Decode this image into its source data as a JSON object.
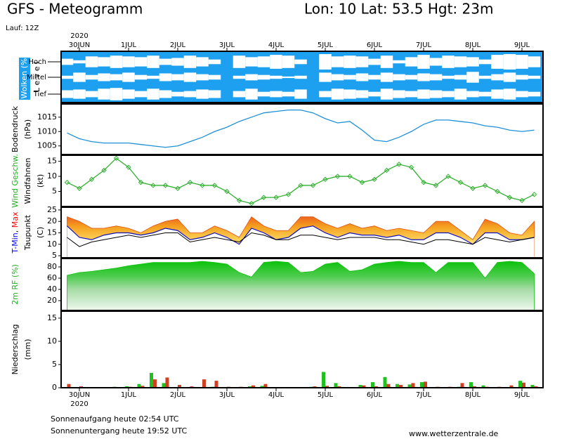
{
  "header": {
    "title": "GFS - Meteogramm",
    "location": "Lon: 10 Lat: 53.5 Hgt: 23m",
    "run": "Lauf: 12Z"
  },
  "footer": {
    "sunrise": "Sonnenaufgang heute 02:54 UTC",
    "sunset": "Sonnenuntergang heute 19:52 UTC",
    "source": "www.wetterzentrale.de"
  },
  "chart_data": [
    {
      "type": "cloud",
      "year": "2020",
      "categories": [
        null,
        "30JUN",
        null,
        null,
        null,
        "1JUL",
        null,
        null,
        null,
        "2JUL",
        null,
        null,
        null,
        "3JUL",
        null,
        null,
        null,
        "4JUL",
        null,
        null,
        null,
        "5JUL",
        null,
        null,
        null,
        "6JUL",
        null,
        null,
        null,
        "7JUL",
        null,
        null,
        null,
        "8JUL",
        null,
        null,
        null,
        "9JUL",
        null
      ],
      "ylabel": [
        [
          {
            "text": "Wolken (%)",
            "color": "#ffffff"
          }
        ],
        [
          {
            "text": "L e v e l"
          }
        ]
      ],
      "color": "#1ea0f0",
      "series": [
        {
          "name": "Hoch",
          "color": "#ffffff",
          "values": [
            40,
            20,
            70,
            60,
            80,
            70,
            60,
            80,
            40,
            50,
            80,
            60,
            30,
            0,
            80,
            60,
            70,
            90,
            80,
            30,
            0,
            100,
            70,
            80,
            70,
            40,
            80,
            20,
            60,
            90,
            50,
            80,
            70,
            60,
            30,
            90,
            100,
            90,
            70
          ]
        },
        {
          "name": "Mittel",
          "color": "#ffffff",
          "values": [
            20,
            60,
            30,
            50,
            40,
            60,
            30,
            20,
            50,
            40,
            60,
            40,
            30,
            0,
            20,
            40,
            30,
            20,
            10,
            20,
            0,
            60,
            40,
            30,
            50,
            30,
            60,
            40,
            30,
            50,
            40,
            20,
            30,
            70,
            20,
            40,
            60,
            30,
            20
          ]
        },
        {
          "name": "Tief",
          "color": "#ffffff",
          "values": [
            50,
            60,
            40,
            70,
            80,
            60,
            40,
            70,
            50,
            30,
            40,
            60,
            50,
            0,
            40,
            70,
            30,
            40,
            30,
            60,
            0,
            40,
            70,
            60,
            50,
            30,
            70,
            50,
            40,
            60,
            50,
            40,
            70,
            40,
            30,
            60,
            70,
            40,
            30
          ]
        }
      ]
    },
    {
      "type": "line",
      "ylabel": [
        [
          {
            "text": "Bodendruck"
          }
        ],
        [
          {
            "text": "(hPa)"
          }
        ]
      ],
      "ylim": [
        1002,
        1019.6
      ],
      "yticks": [
        1005,
        1010,
        1015
      ],
      "series": [
        {
          "color": "#1e90d8",
          "values": [
            1009.5,
            1007.5,
            1006.5,
            1006,
            1006,
            1006,
            1005.5,
            1005,
            1004.5,
            1005,
            1006.5,
            1008,
            1010,
            1011.5,
            1013.5,
            1015,
            1016.5,
            1017,
            1017.5,
            1017.5,
            1016.5,
            1014.5,
            1013,
            1013.5,
            1010.5,
            1007,
            1006.5,
            1008,
            1010,
            1012.5,
            1014,
            1014,
            1013.5,
            1013,
            1012,
            1011.5,
            1010.5,
            1010,
            1010.5
          ]
        }
      ]
    },
    {
      "type": "line",
      "markers": true,
      "ylabel": [
        [
          {
            "text": "Wind Geschw.",
            "color": "#20b020"
          }
        ],
        [
          {
            "text": "Windfahnen"
          }
        ],
        [
          {
            "text": "(kt)"
          }
        ]
      ],
      "ylim": [
        0,
        17
      ],
      "yticks": [
        5,
        10,
        15
      ],
      "series": [
        {
          "color": "#30b030",
          "values": [
            8,
            6,
            9,
            12,
            16,
            13,
            8,
            7,
            7,
            6,
            8,
            7,
            7,
            5,
            2,
            1,
            3,
            3,
            4,
            7,
            7,
            9,
            10,
            10,
            8,
            9,
            12,
            14,
            13,
            8,
            7,
            10,
            8,
            6,
            7,
            5,
            3,
            2,
            4
          ]
        }
      ]
    },
    {
      "type": "range",
      "ylabel": [
        [
          {
            "text": "T-Min",
            "color": "#0000ff"
          },
          {
            "text": ", "
          },
          {
            "text": "Max",
            "color": "#ff0000"
          }
        ],
        [
          {
            "text": "Taupunkt"
          }
        ],
        [
          {
            "text": "(C)"
          }
        ]
      ],
      "ylim": [
        4.1,
        26.2
      ],
      "yticks": [
        5,
        10,
        15,
        20,
        25
      ],
      "series": [
        {
          "color": "#e05010",
          "values": [
            22,
            20,
            17,
            17,
            18,
            17,
            15,
            18,
            20,
            21,
            15,
            15,
            18,
            16,
            13,
            22,
            18,
            16,
            16,
            22,
            22,
            19,
            17,
            19,
            17,
            18,
            16,
            17,
            16,
            15,
            20,
            20,
            16,
            12,
            21,
            19,
            15,
            14,
            20
          ]
        },
        {
          "color": "#1010c0",
          "values": [
            18,
            13,
            12,
            14,
            15,
            15,
            14,
            15,
            17,
            16,
            12,
            13,
            15,
            13,
            10,
            17,
            15,
            12,
            13,
            17,
            18,
            15,
            13,
            15,
            14,
            14,
            13,
            14,
            12,
            12,
            15,
            15,
            13,
            10,
            15,
            15,
            12,
            12,
            13
          ]
        },
        {
          "color": "#000000",
          "values": [
            13,
            9,
            11,
            12,
            13,
            14,
            13,
            14,
            15,
            15,
            11,
            12,
            13,
            12,
            11,
            15,
            14,
            12,
            12,
            14,
            14,
            13,
            12,
            13,
            13,
            13,
            12,
            12,
            11,
            10,
            12,
            12,
            11,
            10,
            13,
            12,
            11,
            12,
            13
          ]
        }
      ]
    },
    {
      "type": "area",
      "ylabel": [
        [
          {
            "text": "2m RF (%)",
            "color": "#20b020"
          }
        ]
      ],
      "ylim": [
        2.5,
        95
      ],
      "yticks": [
        20,
        40,
        60,
        80
      ],
      "series": [
        {
          "color": "#10c010",
          "values": [
            65,
            70,
            72,
            75,
            78,
            82,
            85,
            88,
            88,
            88,
            88,
            90,
            88,
            85,
            70,
            62,
            88,
            90,
            88,
            70,
            72,
            85,
            88,
            72,
            75,
            85,
            88,
            90,
            88,
            88,
            70,
            88,
            88,
            88,
            60,
            88,
            90,
            88,
            68
          ]
        }
      ]
    },
    {
      "type": "bar",
      "year": "2020",
      "categories": [
        null,
        "30JUN",
        null,
        null,
        null,
        "1JUL",
        null,
        null,
        null,
        "2JUL",
        null,
        null,
        null,
        "3JUL",
        null,
        null,
        null,
        "4JUL",
        null,
        null,
        null,
        "5JUL",
        null,
        null,
        null,
        "6JUL",
        null,
        null,
        null,
        "7JUL",
        null,
        null,
        null,
        "8JUL",
        null,
        null,
        null,
        "9JUL",
        null
      ],
      "ylabel": [
        [
          {
            "text": "Niederschlag"
          }
        ],
        [
          {
            "text": "(mm)"
          }
        ]
      ],
      "ylim": [
        0,
        16.5
      ],
      "yticks": [
        0,
        5,
        10,
        15
      ],
      "series": [
        {
          "color": "#20c020",
          "values": [
            0,
            0,
            0,
            0,
            0.2,
            0.3,
            0.8,
            3.2,
            1.0,
            0,
            0,
            0,
            0.2,
            0,
            0,
            0.3,
            0.4,
            0,
            0,
            0,
            0.2,
            3.4,
            1.0,
            0,
            0.6,
            1.2,
            2.3,
            0.8,
            0.7,
            1.2,
            0,
            0,
            0.2,
            1.2,
            0.5,
            0,
            0,
            1.5,
            0.6
          ]
        },
        {
          "color": "#d04020",
          "values": [
            0.8,
            0.3,
            0,
            0.1,
            0.1,
            0.2,
            0.4,
            1.8,
            2.2,
            0.6,
            0.3,
            1.8,
            1.5,
            0.2,
            0.2,
            0.5,
            0.8,
            0,
            0,
            0,
            0.3,
            0.4,
            0.3,
            0,
            0.5,
            0.3,
            0.8,
            0.6,
            1.0,
            1.3,
            0.2,
            0.2,
            1.0,
            0.3,
            0.2,
            0.2,
            0.5,
            1.1,
            0.3
          ]
        }
      ]
    }
  ]
}
